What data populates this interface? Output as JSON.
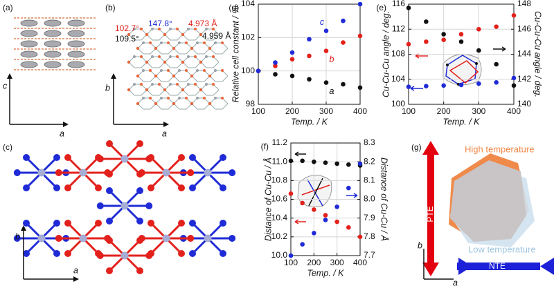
{
  "panels": {
    "a": {
      "label": "(a)",
      "axis_vertical": "c",
      "axis_horizontal": "a"
    },
    "b": {
      "label": "(b)",
      "annotations": [
        "102.7°",
        "109.5°",
        "147.8°",
        "4.973 Å",
        "4.959 Å"
      ],
      "axis_vertical": "b",
      "axis_horizontal": "a"
    },
    "c": {
      "label": "(c)",
      "axis_vertical": "b",
      "axis_horizontal": "a"
    },
    "g": {
      "label": "(g)",
      "high": "High temperature",
      "low": "Low temperature",
      "pte": "PTE",
      "nte": "NTE",
      "axis_vertical": "b",
      "axis_horizontal": "a"
    }
  },
  "chart_data": [
    {
      "type": "scatter",
      "panel_label": "(d)",
      "x_label": "Temp. / K",
      "y_label": "Relative cell constant / %",
      "x": [
        100,
        150,
        200,
        250,
        300,
        350,
        400
      ],
      "xlim": [
        100,
        400
      ],
      "xticks": [
        100,
        200,
        300,
        400
      ],
      "ylim": [
        98,
        104
      ],
      "yticks": [
        98,
        100,
        102,
        104
      ],
      "grid": true,
      "series": [
        {
          "name": "a",
          "color": "#111111",
          "values": [
            100,
            99.8,
            99.7,
            99.5,
            99.3,
            99.2,
            99.0
          ]
        },
        {
          "name": "b",
          "color": "#e3211c",
          "values": [
            100,
            100.3,
            100.7,
            100.9,
            101.2,
            101.7,
            102.1
          ]
        },
        {
          "name": "c",
          "color": "#1f2bd6",
          "values": [
            100,
            100.5,
            101.1,
            101.9,
            102.4,
            103.0,
            104.0
          ]
        }
      ]
    },
    {
      "type": "scatter",
      "panel_label": "(e)",
      "x_label": "Temp. / K",
      "y_label": "Cu-Cu-Cu angle / deg.",
      "y2_label": "Cu-Cu-Cu angle / deg.",
      "x": [
        100,
        150,
        200,
        250,
        300,
        350,
        400
      ],
      "xlim": [
        100,
        400
      ],
      "xticks": [
        100,
        200,
        300,
        400
      ],
      "ylim": [
        100,
        116
      ],
      "yticks": [
        100,
        104,
        108,
        112,
        116
      ],
      "y2lim": [
        140,
        148
      ],
      "y2ticks": [
        140,
        142,
        144,
        146,
        148
      ],
      "grid": true,
      "series": [
        {
          "color": "#e3211c",
          "values": [
            109.6,
            110.0,
            110.3,
            111.2,
            112.0,
            112.4,
            114.2
          ]
        },
        {
          "color": "#111111",
          "axis": "y2",
          "values": [
            147.7,
            146.6,
            145.6,
            145.0,
            144.3,
            143.2,
            141.5
          ]
        },
        {
          "color": "#1f2bd6",
          "values": [
            102.8,
            102.9,
            103.0,
            103.1,
            103.3,
            103.5,
            104.2
          ]
        }
      ]
    },
    {
      "type": "scatter",
      "panel_label": "(f)",
      "x_label": "Temp. / K",
      "y_label": "Distance of Cu-Cu / Å",
      "y2_label": "Distance of Cu-Cu / Å",
      "x": [
        100,
        150,
        200,
        250,
        300,
        350,
        400
      ],
      "xlim": [
        100,
        400
      ],
      "xticks": [
        100,
        200,
        300,
        400
      ],
      "ylim": [
        10,
        11.2
      ],
      "yticks": [
        {
          "value": 10,
          "label": "10.0"
        },
        10.2,
        10.4,
        10.6,
        10.8,
        {
          "value": 11,
          "label": "11.0"
        },
        11.2
      ],
      "y2lim": [
        7.7,
        8.3
      ],
      "y2ticks": [
        7.7,
        7.8,
        7.9,
        {
          "value": 8,
          "label": "8.0"
        },
        8.1,
        8.2,
        8.3
      ],
      "grid": true,
      "series": [
        {
          "color": "#111111",
          "values": [
            11.01,
            11.01,
            11.0,
            10.99,
            10.98,
            10.97,
            10.96
          ]
        },
        {
          "color": "#e3211c",
          "values": [
            10.66,
            10.56,
            10.49,
            10.43,
            10.36,
            10.3,
            10.2
          ]
        },
        {
          "color": "#1f2bd6",
          "axis": "y2",
          "values": [
            7.7,
            7.76,
            7.82,
            7.89,
            7.96,
            8.06,
            8.19
          ]
        }
      ]
    }
  ]
}
